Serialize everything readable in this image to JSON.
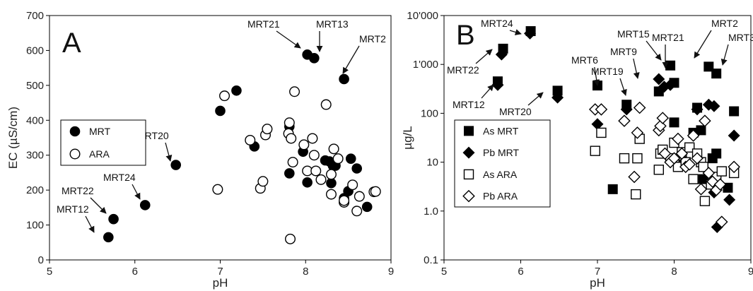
{
  "chart_data": [
    {
      "type": "scatter",
      "panel_label": "A",
      "xlabel": "pH",
      "ylabel": "EC (µS/cm)",
      "xlim": [
        5,
        9
      ],
      "ylim": [
        0,
        700
      ],
      "yscale": "linear",
      "xticks": [
        "5",
        "6",
        "7",
        "8",
        "9"
      ],
      "yticks": [
        "0",
        "100",
        "200",
        "300",
        "400",
        "500",
        "600",
        "700"
      ],
      "grid": false,
      "legend": {
        "placement": "left",
        "entries": [
          {
            "label": "MRT",
            "marker": "circle",
            "filled": true
          },
          {
            "label": "ARA",
            "marker": "circle",
            "filled": false
          }
        ]
      },
      "series": [
        {
          "name": "MRT",
          "marker": "circle",
          "filled": true,
          "points": [
            [
              5.69,
              65
            ],
            [
              5.75,
              117
            ],
            [
              6.12,
              157
            ],
            [
              6.48,
              272
            ],
            [
              7.0,
              427
            ],
            [
              7.19,
              485
            ],
            [
              7.4,
              325
            ],
            [
              7.81,
              248
            ],
            [
              7.81,
              382
            ],
            [
              7.97,
              310
            ],
            [
              8.02,
              222
            ],
            [
              8.02,
              588
            ],
            [
              8.1,
              578
            ],
            [
              8.23,
              285
            ],
            [
              8.28,
              282
            ],
            [
              8.32,
              270
            ],
            [
              8.3,
              220
            ],
            [
              8.35,
              270
            ],
            [
              8.45,
              518
            ],
            [
              8.5,
              197
            ],
            [
              8.45,
              177
            ],
            [
              8.53,
              290
            ],
            [
              8.6,
              262
            ],
            [
              8.72,
              152
            ]
          ]
        },
        {
          "name": "ARA",
          "marker": "circle",
          "filled": false,
          "points": [
            [
              6.97,
              202
            ],
            [
              7.05,
              470
            ],
            [
              7.35,
              343
            ],
            [
              7.47,
              205
            ],
            [
              7.5,
              225
            ],
            [
              7.53,
              358
            ],
            [
              7.55,
              375
            ],
            [
              7.8,
              362
            ],
            [
              7.81,
              393
            ],
            [
              7.83,
              348
            ],
            [
              7.82,
              60
            ],
            [
              7.85,
              280
            ],
            [
              7.87,
              482
            ],
            [
              7.98,
              330
            ],
            [
              8.02,
              255
            ],
            [
              8.08,
              348
            ],
            [
              8.1,
              300
            ],
            [
              8.12,
              255
            ],
            [
              8.18,
              230
            ],
            [
              8.24,
              445
            ],
            [
              8.3,
              245
            ],
            [
              8.3,
              188
            ],
            [
              8.33,
              318
            ],
            [
              8.38,
              290
            ],
            [
              8.45,
              165
            ],
            [
              8.45,
              170
            ],
            [
              8.55,
              215
            ],
            [
              8.6,
              140
            ],
            [
              8.63,
              182
            ],
            [
              8.8,
              195
            ],
            [
              8.82,
              196
            ]
          ]
        }
      ],
      "annotations": [
        {
          "text": "MRT12",
          "target": [
            5.69,
            65
          ]
        },
        {
          "text": "MRT22",
          "target": [
            5.75,
            117
          ]
        },
        {
          "text": "MRT24",
          "target": [
            6.12,
            157
          ]
        },
        {
          "text": "MRT20",
          "target": [
            6.48,
            272
          ]
        },
        {
          "text": "MRT21",
          "target": [
            8.02,
            588
          ]
        },
        {
          "text": "MRT13",
          "target": [
            8.1,
            578
          ]
        },
        {
          "text": "MRT2",
          "target": [
            8.45,
            518
          ]
        }
      ]
    },
    {
      "type": "scatter",
      "panel_label": "B",
      "xlabel": "pH",
      "ylabel": "µg/L",
      "xlim": [
        5,
        9
      ],
      "ylim": [
        0.1,
        10000
      ],
      "yscale": "log",
      "xticks": [
        "5",
        "6",
        "7",
        "8",
        "9"
      ],
      "yticks": [
        "0.1",
        "1.0",
        "10",
        "100",
        "1'000",
        "10'000"
      ],
      "grid": false,
      "legend": {
        "placement": "left",
        "entries": [
          {
            "label": "As MRT",
            "marker": "square",
            "filled": true
          },
          {
            "label": "Pb MRT",
            "marker": "diamond",
            "filled": true
          },
          {
            "label": "As ARA",
            "marker": "square",
            "filled": false
          },
          {
            "label": "Pb ARA",
            "marker": "diamond",
            "filled": false
          }
        ]
      },
      "series": [
        {
          "name": "As MRT",
          "marker": "square",
          "filled": true,
          "points": [
            [
              5.7,
              450
            ],
            [
              5.77,
              2100
            ],
            [
              6.13,
              4800
            ],
            [
              6.48,
              290
            ],
            [
              7.0,
              370
            ],
            [
              7.2,
              2.8
            ],
            [
              7.38,
              150
            ],
            [
              7.8,
              280
            ],
            [
              7.95,
              950
            ],
            [
              8.0,
              420
            ],
            [
              8.0,
              65
            ],
            [
              8.12,
              9
            ],
            [
              8.25,
              40
            ],
            [
              8.3,
              130
            ],
            [
              8.35,
              45
            ],
            [
              8.38,
              4.5
            ],
            [
              8.45,
              900
            ],
            [
              8.5,
              12
            ],
            [
              8.55,
              650
            ],
            [
              8.55,
              15
            ],
            [
              8.7,
              3
            ],
            [
              8.78,
              110
            ]
          ]
        },
        {
          "name": "Pb MRT",
          "marker": "diamond",
          "filled": true,
          "points": [
            [
              5.7,
              380
            ],
            [
              5.75,
              1600
            ],
            [
              6.12,
              4300
            ],
            [
              6.48,
              210
            ],
            [
              7.0,
              60
            ],
            [
              7.38,
              120
            ],
            [
              7.8,
              500
            ],
            [
              7.87,
              350
            ],
            [
              7.95,
              380
            ],
            [
              8.3,
              120
            ],
            [
              8.45,
              150
            ],
            [
              8.52,
              140
            ],
            [
              8.52,
              2.4
            ],
            [
              8.56,
              0.47
            ],
            [
              8.72,
              1.7
            ],
            [
              8.78,
              35
            ]
          ]
        },
        {
          "name": "As ARA",
          "marker": "square",
          "filled": false,
          "points": [
            [
              6.97,
              17
            ],
            [
              7.05,
              40
            ],
            [
              7.35,
              12
            ],
            [
              7.5,
              2.2
            ],
            [
              7.52,
              12
            ],
            [
              7.55,
              30
            ],
            [
              7.8,
              7
            ],
            [
              7.82,
              15
            ],
            [
              7.85,
              18
            ],
            [
              7.95,
              12
            ],
            [
              8.0,
              25
            ],
            [
              8.05,
              8
            ],
            [
              8.1,
              16
            ],
            [
              8.15,
              10
            ],
            [
              8.2,
              20
            ],
            [
              8.25,
              4.5
            ],
            [
              8.3,
              15
            ],
            [
              8.35,
              10
            ],
            [
              8.38,
              8
            ],
            [
              8.4,
              1.6
            ],
            [
              8.48,
              3.5
            ],
            [
              8.55,
              5
            ],
            [
              8.62,
              6.5
            ],
            [
              8.78,
              6
            ]
          ]
        },
        {
          "name": "Pb ARA",
          "marker": "diamond",
          "filled": false,
          "points": [
            [
              6.97,
              120
            ],
            [
              7.05,
              120
            ],
            [
              7.35,
              70
            ],
            [
              7.48,
              5
            ],
            [
              7.52,
              40
            ],
            [
              7.55,
              130
            ],
            [
              7.8,
              45
            ],
            [
              7.82,
              55
            ],
            [
              7.85,
              80
            ],
            [
              7.88,
              15
            ],
            [
              7.95,
              10
            ],
            [
              8.0,
              12
            ],
            [
              8.05,
              30
            ],
            [
              8.1,
              15
            ],
            [
              8.15,
              8
            ],
            [
              8.2,
              9
            ],
            [
              8.25,
              35
            ],
            [
              8.3,
              12
            ],
            [
              8.35,
              2.8
            ],
            [
              8.4,
              70
            ],
            [
              8.45,
              6
            ],
            [
              8.5,
              4
            ],
            [
              8.55,
              2.7
            ],
            [
              8.6,
              3.5
            ],
            [
              8.62,
              0.6
            ],
            [
              8.78,
              8
            ]
          ]
        }
      ],
      "annotations": [
        {
          "text": "MRT24",
          "target": [
            6.13,
            4800
          ]
        },
        {
          "text": "MRT22",
          "target": [
            5.77,
            2100
          ]
        },
        {
          "text": "MRT12",
          "target": [
            5.7,
            450
          ]
        },
        {
          "text": "MRT20",
          "target": [
            6.48,
            290
          ]
        },
        {
          "text": "MRT6",
          "target": [
            7.0,
            370
          ]
        },
        {
          "text": "MRT19",
          "target": [
            7.38,
            150
          ]
        },
        {
          "text": "MRT9",
          "target": [
            7.8,
            500
          ]
        },
        {
          "text": "MRT15",
          "target": [
            7.95,
            950
          ]
        },
        {
          "text": "MRT21",
          "target": [
            8.0,
            420
          ]
        },
        {
          "text": "MRT2",
          "target": [
            8.45,
            900
          ]
        },
        {
          "text": "MRT3",
          "target": [
            8.55,
            650
          ]
        }
      ]
    }
  ]
}
